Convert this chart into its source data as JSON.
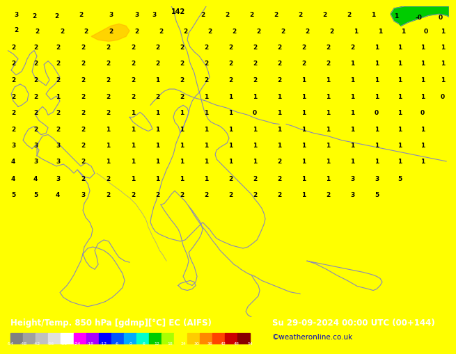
{
  "title_left": "Height/Temp. 850 hPa [gdmp][°C] EC (AIFS)",
  "title_right": "Su 29-09-2024 00:00 UTC (00+144)",
  "credit": "©weatheronline.co.uk",
  "colorbar_values": [
    -54,
    -48,
    -42,
    -36,
    -30,
    -24,
    -18,
    -12,
    -6,
    0,
    6,
    12,
    18,
    24,
    30,
    36,
    42,
    48,
    54
  ],
  "cb_colors": [
    "#808080",
    "#a0a0a0",
    "#c0c0c0",
    "#e0e0e0",
    "#ffffff",
    "#ff00ff",
    "#aa00ff",
    "#0000ff",
    "#0055ff",
    "#00aaff",
    "#00ffcc",
    "#00cc00",
    "#aaff00",
    "#ffff00",
    "#ffcc00",
    "#ff8800",
    "#ff4400",
    "#cc0000",
    "#880000"
  ],
  "bg_color": "#ffff00",
  "bar_bg": "#000000",
  "coast_color": "#8888bb",
  "border_color": "#000000",
  "num_color": "#000000",
  "green_color": "#00cc00",
  "orange_color": "#ffaa00",
  "credit_color": "#0000bb"
}
